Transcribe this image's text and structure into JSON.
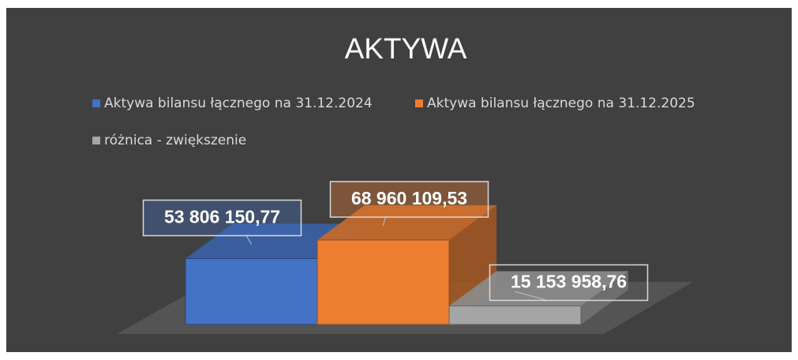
{
  "chart_data": {
    "type": "bar",
    "title": "AKTYWA",
    "series": [
      {
        "name": "Aktywa bilansu łącznego na 31.12.2024",
        "color": "#4472c4",
        "values": [
          53806150.77
        ],
        "value_labels": [
          "53 806 150,77"
        ]
      },
      {
        "name": "Aktywa bilansu łącznego na 31.12.2025",
        "color": "#ed7d31",
        "values": [
          68960109.53
        ],
        "value_labels": [
          "68 960 109,53"
        ]
      },
      {
        "name": "różnica - zwiększenie",
        "color": "#a5a5a5",
        "values": [
          15153958.76
        ],
        "value_labels": [
          "15 153 958,76"
        ]
      }
    ]
  }
}
